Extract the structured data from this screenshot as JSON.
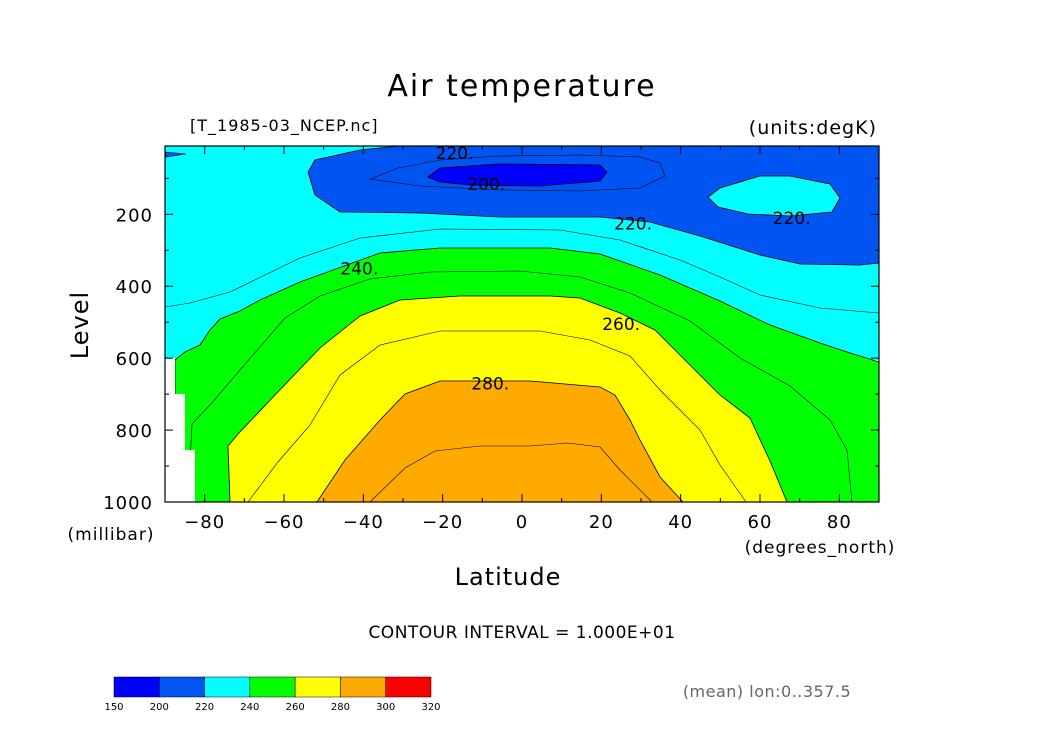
{
  "chart_data": {
    "type": "contour",
    "title": "Air temperature",
    "file_label": "[T_1985-03_NCEP.nc]",
    "units_label": "(units:degK)",
    "xlabel": "Latitude",
    "xunits": "(degrees_north)",
    "ylabel": "Level",
    "yunits": "(millibar)",
    "xlim": [
      -90,
      90
    ],
    "ylim": [
      1000,
      10
    ],
    "y_direction": "decreasing-upward",
    "x_ticks": [
      -80,
      -60,
      -40,
      -20,
      0,
      20,
      40,
      60,
      80
    ],
    "x_tick_labels": [
      "−80",
      "−60",
      "−40",
      "−20",
      "0",
      "20",
      "40",
      "60",
      "80"
    ],
    "y_ticks": [
      1000,
      800,
      600,
      400,
      200
    ],
    "y_tick_labels": [
      "1000",
      "800",
      "600",
      "400",
      "200"
    ],
    "contour_interval_text": "CONTOUR INTERVAL = 1.000E+01",
    "contour_labels": [
      {
        "text": "220.",
        "lat": -17,
        "level": 30
      },
      {
        "text": "200.",
        "lat": -9,
        "level": 115
      },
      {
        "text": "220.",
        "lat": 28,
        "level": 225
      },
      {
        "text": "220.",
        "lat": 68,
        "level": 210
      },
      {
        "text": "240.",
        "lat": -41,
        "level": 350
      },
      {
        "text": "260.",
        "lat": 25,
        "level": 505
      },
      {
        "text": "280.",
        "lat": -8,
        "level": 670
      }
    ],
    "colorbar": {
      "ticks": [
        "150",
        "200",
        "220",
        "240",
        "260",
        "280",
        "300",
        "320"
      ],
      "colors": [
        "#0000ff",
        "#0055f2",
        "#00ffff",
        "#00ff00",
        "#ffff00",
        "#ffaa00",
        "#ff0000"
      ]
    },
    "footnote": "(mean) lon:0..357.5",
    "grid": false
  }
}
